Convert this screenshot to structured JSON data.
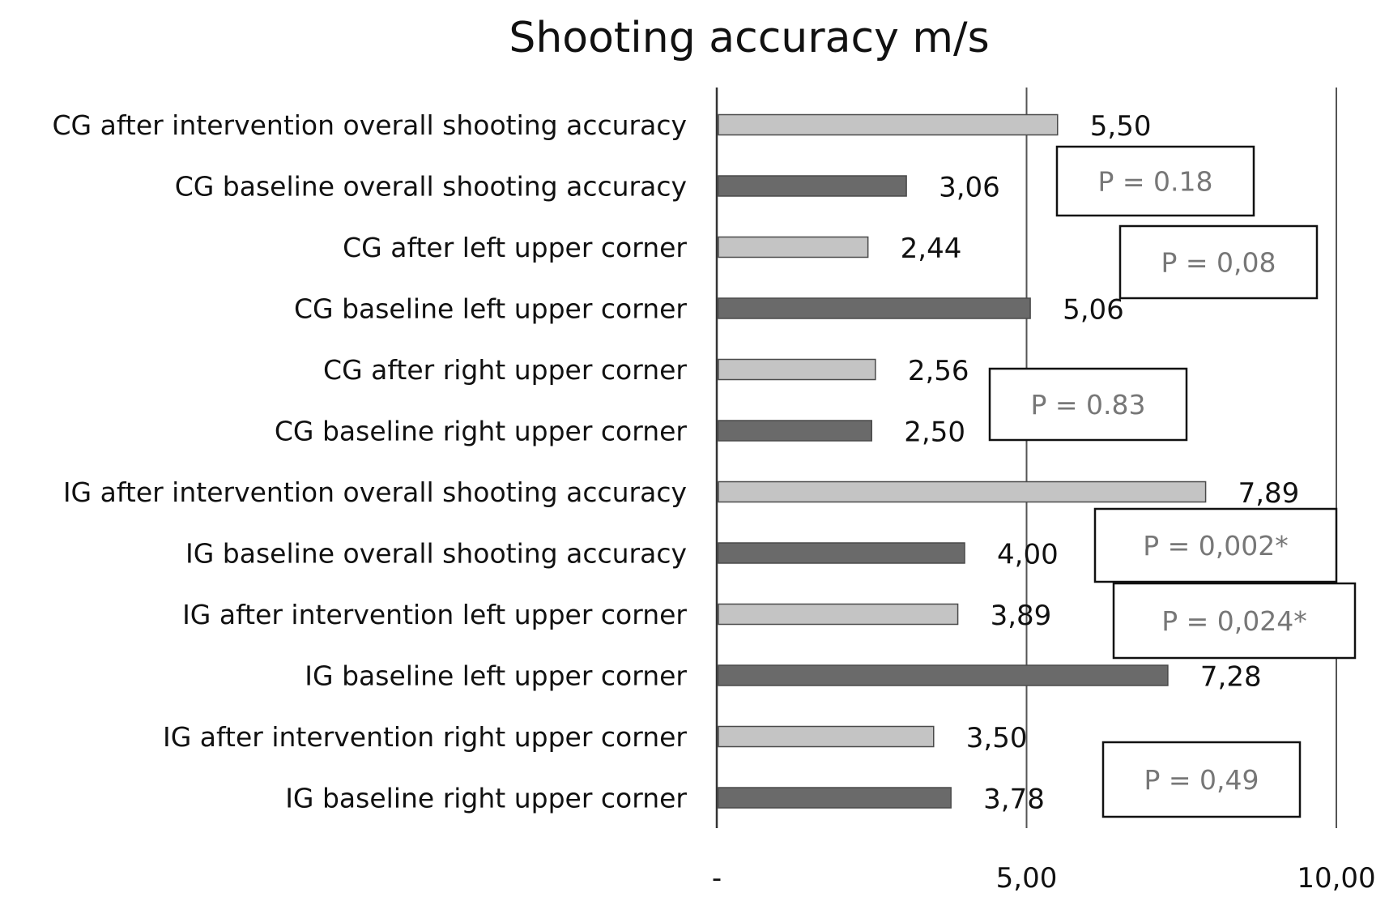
{
  "chart_data": {
    "type": "bar",
    "orientation": "horizontal",
    "title": "Shooting accuracy m/s",
    "categories": [
      "CG after intervention overall shooting accuracy",
      "CG baseline overall shooting accuracy",
      "CG after left upper corner",
      "CG baseline left upper corner",
      "CG after right upper corner",
      "CG baseline right upper corner",
      "IG after intervention overall shooting accuracy",
      "IG baseline overall shooting accuracy",
      "IG after intervention left upper corner",
      "IG baseline left upper corner",
      "IG after intervention right upper corner",
      "IG baseline right upper corner"
    ],
    "values": [
      5.5,
      3.06,
      2.44,
      5.06,
      2.56,
      2.5,
      7.89,
      4.0,
      3.89,
      7.28,
      3.5,
      3.78
    ],
    "value_labels": [
      "5,50",
      "3,06",
      "2,44",
      "5,06",
      "2,56",
      "2,50",
      "7,89",
      "4,00",
      "3,89",
      "7,28",
      "3,50",
      "3,78"
    ],
    "bar_kinds": [
      "after",
      "baseline",
      "after",
      "baseline",
      "after",
      "baseline",
      "after",
      "baseline",
      "after",
      "baseline",
      "after",
      "baseline"
    ],
    "xlim": [
      0,
      10
    ],
    "x_ticks": [
      0,
      5,
      10
    ],
    "x_tick_labels": [
      "-",
      "5,00",
      "10,00"
    ],
    "grid": true,
    "annotations": [
      {
        "text": "P = 0.18",
        "rows": [
          0,
          1
        ]
      },
      {
        "text": "P = 0,08",
        "rows": [
          2,
          3
        ]
      },
      {
        "text": "P = 0.83",
        "rows": [
          4,
          5
        ]
      },
      {
        "text": "P = 0,002*",
        "rows": [
          6,
          7
        ]
      },
      {
        "text": "P = 0,024*",
        "rows": [
          8,
          9
        ]
      },
      {
        "text": "P = 0,49",
        "rows": [
          10,
          11
        ]
      }
    ],
    "colors": {
      "after": "#c4c4c4",
      "baseline": "#6a6a6a",
      "axis": "#333333",
      "grid": "#555555"
    }
  }
}
